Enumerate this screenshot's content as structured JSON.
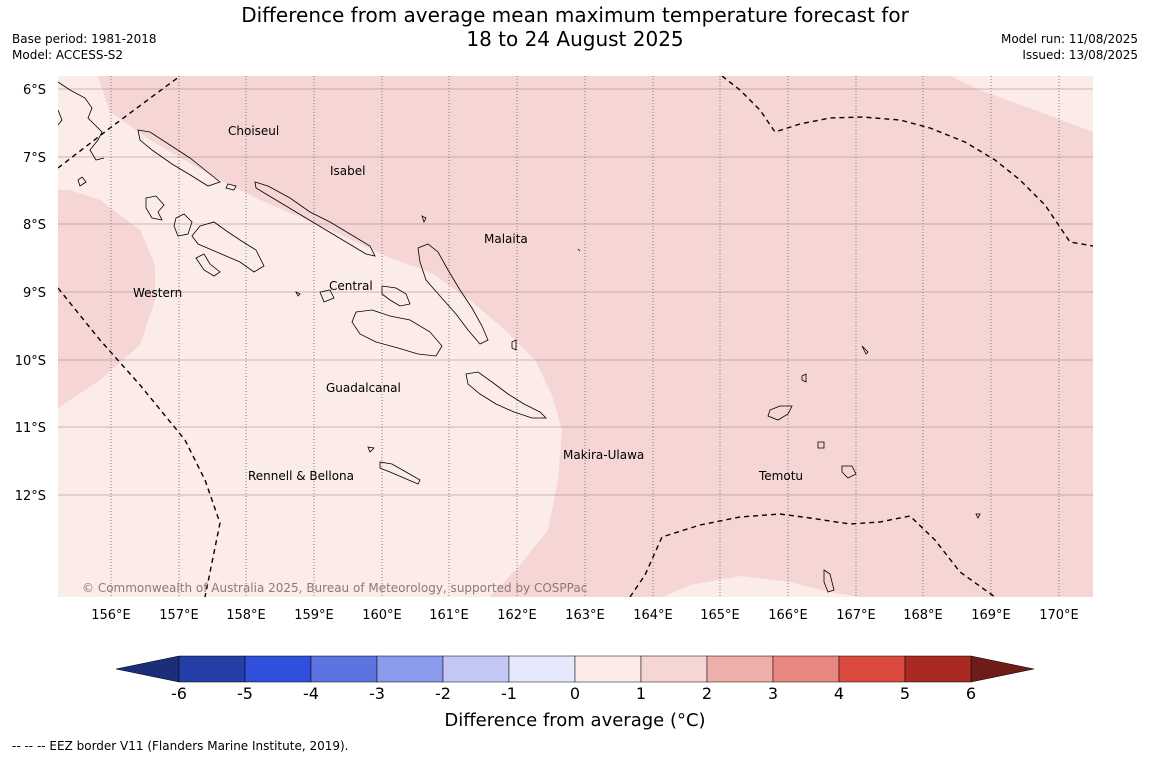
{
  "title_line1": "Difference from average mean maximum temperature forecast for",
  "title_line2": "18 to 24 August 2025",
  "base_period": "Base period: 1981-2018",
  "model": "Model: ACCESS-S2",
  "model_run": "Model run: 11/08/2025",
  "issued": "Issued: 13/08/2025",
  "copyright": "© Commonwealth of Australia 2025, Bureau of Meteorology, supported by COSPPac",
  "lat_labels": [
    "6°S",
    "7°S",
    "8°S",
    "9°S",
    "10°S",
    "11°S",
    "12°S"
  ],
  "lon_labels": [
    "156°E",
    "157°E",
    "158°E",
    "159°E",
    "160°E",
    "161°E",
    "162°E",
    "163°E",
    "164°E",
    "165°E",
    "166°E",
    "167°E",
    "168°E",
    "169°E",
    "170°E"
  ],
  "regions": [
    {
      "name": "Choiseul"
    },
    {
      "name": "Isabel"
    },
    {
      "name": "Malaita"
    },
    {
      "name": "Western"
    },
    {
      "name": "Central"
    },
    {
      "name": "Guadalcanal"
    },
    {
      "name": "Makira-Ulawa"
    },
    {
      "name": "Rennell & Bellona"
    },
    {
      "name": "Temotu"
    }
  ],
  "colorbar": {
    "ticks": [
      "-6",
      "-5",
      "-4",
      "-3",
      "-2",
      "-1",
      "0",
      "1",
      "2",
      "3",
      "4",
      "5",
      "6"
    ],
    "colors": [
      "#243fa8",
      "#2f4fdc",
      "#5c73e2",
      "#8a9aec",
      "#c2c8f3",
      "#e6e9fb",
      "#fbebe9",
      "#f5d6d4",
      "#eeaeaa",
      "#e8877f",
      "#dc4a3f",
      "#a92a22"
    ],
    "under_color": "#1b2e7a",
    "over_color": "#6e1c17",
    "label": "Difference from average (°C)"
  },
  "categories": {
    "zero_to_one": "#fbebe9",
    "one_to_two": "#f5d6d4"
  },
  "legend_note": "--  --  -- EEZ border V11 (Flanders Marine Institute, 2019)."
}
